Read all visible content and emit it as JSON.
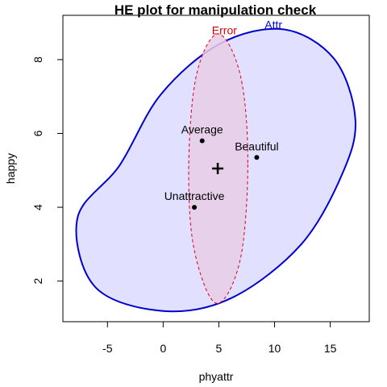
{
  "chart_data": {
    "type": "scatter",
    "title": "HE plot for manipulation check",
    "xlabel": "phyattr",
    "ylabel": "happy",
    "xlim": [
      -9,
      18.5
    ],
    "ylim": [
      0.9,
      9.2
    ],
    "xticks": [
      -5,
      0,
      5,
      10,
      15
    ],
    "yticks": [
      2,
      4,
      6,
      8
    ],
    "colors": {
      "hypothesis_stroke": "#0000cd",
      "hypothesis_fill": "#e1e1ff",
      "error_stroke": "#e0001a",
      "error_fill": "#e8cce6",
      "text_hypothesis": "#0000cc",
      "text_error": "#dd0000"
    },
    "grand_mean": {
      "x": 4.9,
      "y": 5.05
    },
    "points": [
      {
        "label": "Average",
        "x": 3.5,
        "y": 5.8
      },
      {
        "label": "Beautiful",
        "x": 8.4,
        "y": 5.35
      },
      {
        "label": "Unattractive",
        "x": 2.8,
        "y": 4.0
      }
    ],
    "ellipses": [
      {
        "name": "Attr",
        "role": "hypothesis",
        "outline": [
          [
            17.25,
            6.4
          ],
          [
            15.35,
            8.02
          ],
          [
            10.8,
            8.82
          ],
          [
            5.1,
            8.43
          ],
          [
            -0.2,
            7.06
          ],
          [
            -3.9,
            5.14
          ],
          [
            -7.7,
            3.7
          ],
          [
            -6.1,
            1.84
          ],
          [
            0.0,
            1.19
          ],
          [
            6.2,
            1.55
          ],
          [
            12.4,
            3.0
          ],
          [
            16.1,
            4.92
          ],
          [
            17.25,
            6.4
          ]
        ],
        "label": {
          "x": 9.9,
          "y": 8.95
        }
      },
      {
        "name": "Error",
        "role": "error",
        "outline": [
          [
            7.6,
            5.2
          ],
          [
            6.95,
            7.55
          ],
          [
            4.95,
            8.7
          ],
          [
            3.0,
            7.6
          ],
          [
            2.3,
            5.2
          ],
          [
            2.75,
            2.9
          ],
          [
            4.75,
            1.4
          ],
          [
            6.9,
            2.55
          ],
          [
            7.6,
            5.2
          ]
        ],
        "label": {
          "x": 5.5,
          "y": 8.8
        }
      }
    ]
  }
}
